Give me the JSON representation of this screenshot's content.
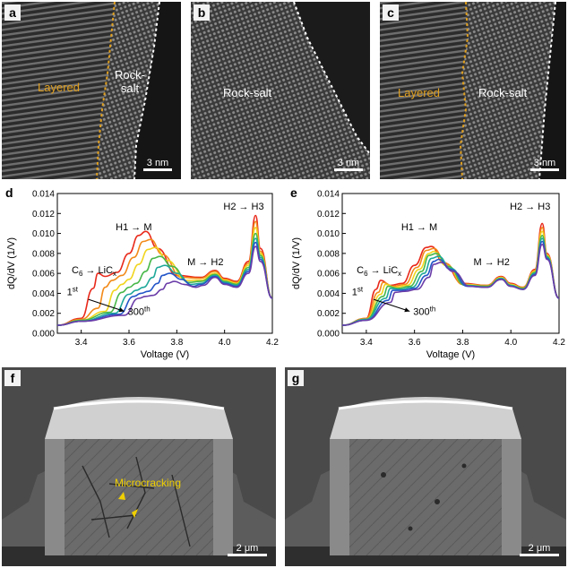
{
  "figure": {
    "panels": {
      "a": {
        "label": "a",
        "region_layered": "Layered",
        "region_rock_1": "Rock-",
        "region_rock_2": "salt",
        "scale_bar": "3 nm"
      },
      "b": {
        "label": "b",
        "region_rock": "Rock-salt",
        "scale_bar": "3 nm"
      },
      "c": {
        "label": "c",
        "region_layered": "Layered",
        "region_rock": "Rock-salt",
        "scale_bar": "3 nm"
      },
      "f": {
        "label": "f",
        "annotation": "Microcracking",
        "scale_bar": "2 μm"
      },
      "g": {
        "label": "g",
        "scale_bar": "2 μm"
      }
    },
    "colors": {
      "layered_boundary": "#e0a020",
      "rocksalt_boundary": "#ffffff",
      "arrow": "#f0d000"
    }
  },
  "chart_data": [
    {
      "type": "line",
      "panel_label": "d",
      "xlabel": "Voltage (V)",
      "ylabel": "dQ/dV (1/V)",
      "xlim": [
        3.3,
        4.2
      ],
      "ylim": [
        0,
        0.014
      ],
      "xticks": [
        "3.4",
        "3.6",
        "3.8",
        "4.0",
        "4.2"
      ],
      "yticks": [
        "0.000",
        "0.002",
        "0.004",
        "0.006",
        "0.008",
        "0.010",
        "0.012",
        "0.014"
      ],
      "annotations": {
        "c6_a": "C",
        "c6_sub": "6",
        "c6_b": " → LiC",
        "c6_x": "x",
        "h1m": "H1 → M",
        "mh2": "M → H2",
        "h2h3": "H2 → H3",
        "first": "1",
        "first_sup": "st",
        "last": "300",
        "last_sup": "th"
      },
      "series": [
        {
          "color": "#e8281a",
          "x": [
            3.3,
            3.4,
            3.45,
            3.47,
            3.5,
            3.55,
            3.6,
            3.64,
            3.67,
            3.72,
            3.8,
            3.9,
            3.96,
            4.0,
            4.05,
            4.1,
            4.13,
            4.15,
            4.2
          ],
          "y": [
            0.0008,
            0.0015,
            0.0045,
            0.006,
            0.0057,
            0.0061,
            0.008,
            0.0098,
            0.0102,
            0.0085,
            0.0058,
            0.0056,
            0.0063,
            0.0055,
            0.0052,
            0.0072,
            0.0118,
            0.0085,
            0.0035
          ]
        },
        {
          "color": "#f28a1a",
          "x": [
            3.3,
            3.4,
            3.47,
            3.5,
            3.53,
            3.57,
            3.62,
            3.66,
            3.69,
            3.74,
            3.82,
            3.9,
            3.96,
            4.0,
            4.05,
            4.1,
            4.13,
            4.15,
            4.2
          ],
          "y": [
            0.0008,
            0.0014,
            0.0025,
            0.0046,
            0.0053,
            0.0058,
            0.0076,
            0.0092,
            0.0094,
            0.0079,
            0.0056,
            0.0055,
            0.0062,
            0.0054,
            0.0051,
            0.007,
            0.0112,
            0.0082,
            0.0035
          ]
        },
        {
          "color": "#f1d51e",
          "x": [
            3.3,
            3.4,
            3.5,
            3.54,
            3.57,
            3.6,
            3.64,
            3.68,
            3.71,
            3.76,
            3.84,
            3.9,
            3.96,
            4.0,
            4.05,
            4.1,
            4.13,
            4.15,
            4.2
          ],
          "y": [
            0.0008,
            0.0013,
            0.0022,
            0.0043,
            0.0049,
            0.0054,
            0.0069,
            0.0084,
            0.0086,
            0.0073,
            0.0053,
            0.0053,
            0.006,
            0.0053,
            0.005,
            0.0068,
            0.0106,
            0.008,
            0.0035
          ]
        },
        {
          "color": "#49b84a",
          "x": [
            3.3,
            3.4,
            3.52,
            3.57,
            3.6,
            3.63,
            3.67,
            3.7,
            3.73,
            3.78,
            3.85,
            3.9,
            3.96,
            4.0,
            4.05,
            4.1,
            4.13,
            4.15,
            4.2
          ],
          "y": [
            0.0008,
            0.0013,
            0.0021,
            0.0041,
            0.0046,
            0.005,
            0.0062,
            0.0075,
            0.0077,
            0.0067,
            0.0051,
            0.0052,
            0.0059,
            0.0052,
            0.0049,
            0.0066,
            0.01,
            0.0078,
            0.0035
          ]
        },
        {
          "color": "#1fa89a",
          "x": [
            3.3,
            3.4,
            3.54,
            3.6,
            3.63,
            3.66,
            3.7,
            3.72,
            3.75,
            3.8,
            3.86,
            3.9,
            3.96,
            4.0,
            4.05,
            4.1,
            4.13,
            4.15,
            4.2
          ],
          "y": [
            0.0008,
            0.0012,
            0.002,
            0.0039,
            0.0043,
            0.0046,
            0.0056,
            0.0066,
            0.0068,
            0.006,
            0.0049,
            0.005,
            0.0058,
            0.0051,
            0.0048,
            0.0064,
            0.0095,
            0.0076,
            0.0035
          ]
        },
        {
          "color": "#2456c8",
          "x": [
            3.3,
            3.4,
            3.56,
            3.62,
            3.65,
            3.68,
            3.72,
            3.74,
            3.77,
            3.82,
            3.87,
            3.9,
            3.96,
            4.0,
            4.05,
            4.1,
            4.13,
            4.15,
            4.2
          ],
          "y": [
            0.0008,
            0.0012,
            0.0019,
            0.0037,
            0.004,
            0.0042,
            0.005,
            0.0058,
            0.006,
            0.0054,
            0.0047,
            0.0049,
            0.0057,
            0.005,
            0.0047,
            0.0062,
            0.0091,
            0.0074,
            0.0035
          ]
        },
        {
          "color": "#6a3ca8",
          "x": [
            3.3,
            3.4,
            3.58,
            3.64,
            3.67,
            3.7,
            3.74,
            3.76,
            3.79,
            3.83,
            3.88,
            3.91,
            3.96,
            4.0,
            4.05,
            4.1,
            4.13,
            4.15,
            4.2
          ],
          "y": [
            0.0008,
            0.0012,
            0.0018,
            0.0035,
            0.0037,
            0.0038,
            0.0044,
            0.005,
            0.0052,
            0.0049,
            0.0046,
            0.0048,
            0.0056,
            0.0049,
            0.0046,
            0.006,
            0.0087,
            0.0072,
            0.0035
          ]
        }
      ]
    },
    {
      "type": "line",
      "panel_label": "e",
      "xlabel": "Voltage (V)",
      "ylabel": "dQ/dV (1/V)",
      "xlim": [
        3.3,
        4.2
      ],
      "ylim": [
        0,
        0.014
      ],
      "xticks": [
        "3.4",
        "3.6",
        "3.8",
        "4.0",
        "4.2"
      ],
      "yticks": [
        "0.000",
        "0.002",
        "0.004",
        "0.006",
        "0.008",
        "0.010",
        "0.012",
        "0.014"
      ],
      "annotations": {
        "c6_a": "C",
        "c6_sub": "6",
        "c6_b": " → LiC",
        "c6_x": "x",
        "h1m": "H1 → M",
        "mh2": "M → H2",
        "h2h3": "H2 → H3",
        "first": "1",
        "first_sup": "st",
        "last": "300",
        "last_sup": "th"
      },
      "series": [
        {
          "color": "#e8281a",
          "x": [
            3.3,
            3.4,
            3.44,
            3.46,
            3.5,
            3.55,
            3.6,
            3.65,
            3.67,
            3.72,
            3.8,
            3.9,
            3.96,
            4.0,
            4.05,
            4.1,
            4.13,
            4.15,
            4.2
          ],
          "y": [
            0.0008,
            0.0015,
            0.0044,
            0.0053,
            0.0048,
            0.005,
            0.0068,
            0.0086,
            0.0087,
            0.0071,
            0.005,
            0.0048,
            0.0057,
            0.005,
            0.0046,
            0.0064,
            0.011,
            0.008,
            0.0035
          ]
        },
        {
          "color": "#f28a1a",
          "x": [
            3.3,
            3.4,
            3.45,
            3.47,
            3.51,
            3.56,
            3.61,
            3.65,
            3.68,
            3.73,
            3.8,
            3.9,
            3.96,
            4.0,
            4.05,
            4.1,
            4.13,
            4.15,
            4.2
          ],
          "y": [
            0.0008,
            0.0015,
            0.0041,
            0.0051,
            0.0047,
            0.0049,
            0.0066,
            0.0083,
            0.0085,
            0.007,
            0.0049,
            0.0048,
            0.0056,
            0.0049,
            0.0046,
            0.0063,
            0.0106,
            0.0079,
            0.0035
          ]
        },
        {
          "color": "#f1d51e",
          "x": [
            3.3,
            3.4,
            3.46,
            3.48,
            3.52,
            3.57,
            3.62,
            3.66,
            3.68,
            3.73,
            3.81,
            3.9,
            3.96,
            4.0,
            4.05,
            4.1,
            4.13,
            4.15,
            4.2
          ],
          "y": [
            0.0008,
            0.0014,
            0.0039,
            0.0049,
            0.0046,
            0.0048,
            0.0064,
            0.008,
            0.0082,
            0.0068,
            0.0049,
            0.0047,
            0.0056,
            0.0049,
            0.0045,
            0.0062,
            0.0102,
            0.0078,
            0.0035
          ]
        },
        {
          "color": "#49b84a",
          "x": [
            3.3,
            3.4,
            3.47,
            3.49,
            3.53,
            3.58,
            3.63,
            3.66,
            3.69,
            3.74,
            3.81,
            3.9,
            3.96,
            4.0,
            4.05,
            4.1,
            4.13,
            4.15,
            4.2
          ],
          "y": [
            0.0008,
            0.0014,
            0.0037,
            0.0047,
            0.0045,
            0.0047,
            0.0062,
            0.0078,
            0.008,
            0.0067,
            0.0048,
            0.0047,
            0.0055,
            0.0048,
            0.0045,
            0.0061,
            0.0098,
            0.0077,
            0.0035
          ]
        },
        {
          "color": "#1fa89a",
          "x": [
            3.3,
            3.4,
            3.48,
            3.5,
            3.54,
            3.59,
            3.64,
            3.67,
            3.7,
            3.75,
            3.82,
            3.9,
            3.96,
            4.0,
            4.05,
            4.1,
            4.13,
            4.15,
            4.2
          ],
          "y": [
            0.0008,
            0.0014,
            0.0035,
            0.0045,
            0.0044,
            0.0046,
            0.006,
            0.0075,
            0.0077,
            0.0065,
            0.0048,
            0.0046,
            0.0055,
            0.0048,
            0.0044,
            0.006,
            0.0095,
            0.0076,
            0.0035
          ]
        },
        {
          "color": "#2456c8",
          "x": [
            3.3,
            3.4,
            3.49,
            3.51,
            3.55,
            3.6,
            3.65,
            3.68,
            3.7,
            3.75,
            3.82,
            3.9,
            3.96,
            4.0,
            4.05,
            4.1,
            4.13,
            4.15,
            4.2
          ],
          "y": [
            0.0008,
            0.0013,
            0.0033,
            0.0043,
            0.0043,
            0.0045,
            0.0058,
            0.0072,
            0.0074,
            0.0064,
            0.0047,
            0.0046,
            0.0054,
            0.0047,
            0.0044,
            0.0059,
            0.0092,
            0.0075,
            0.0035
          ]
        },
        {
          "color": "#6a3ca8",
          "x": [
            3.3,
            3.4,
            3.5,
            3.52,
            3.56,
            3.61,
            3.66,
            3.68,
            3.71,
            3.76,
            3.83,
            3.9,
            3.96,
            4.0,
            4.05,
            4.1,
            4.13,
            4.15,
            4.2
          ],
          "y": [
            0.0008,
            0.0013,
            0.0031,
            0.0041,
            0.0042,
            0.0044,
            0.0056,
            0.0069,
            0.0071,
            0.0062,
            0.0047,
            0.0046,
            0.0054,
            0.0047,
            0.0044,
            0.0058,
            0.0089,
            0.0074,
            0.0035
          ]
        }
      ]
    }
  ]
}
